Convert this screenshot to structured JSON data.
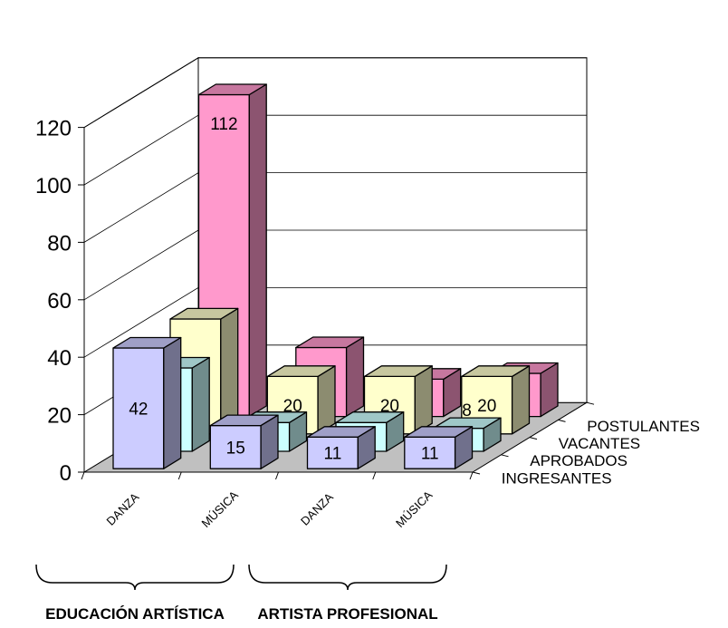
{
  "chart_data": {
    "type": "bar",
    "style": "3d-column",
    "groups": [
      "EDUCACIÓN ARTÍSTICA",
      "ARTISTA PROFESIONAL"
    ],
    "categories": [
      "DANZA",
      "MÚSICA",
      "DANZA",
      "MÚSICA"
    ],
    "series": [
      {
        "name": "INGRESANTES",
        "values": [
          42,
          15,
          11,
          11
        ],
        "color": "#ccccff"
      },
      {
        "name": "APROBADOS",
        "values": [
          29,
          10,
          10,
          8
        ],
        "color": "#ccffff"
      },
      {
        "name": "VACANTES",
        "values": [
          40,
          20,
          20,
          20
        ],
        "color": "#ffffcc"
      },
      {
        "name": "POSTULANTES",
        "values": [
          112,
          24,
          13,
          15
        ],
        "color": "#ff99cc"
      }
    ],
    "yticks": [
      "0",
      "20",
      "40",
      "60",
      "80",
      "100",
      "120"
    ],
    "ylim": [
      0,
      120
    ],
    "grid": true,
    "floor_color": "#c0c0c0"
  }
}
